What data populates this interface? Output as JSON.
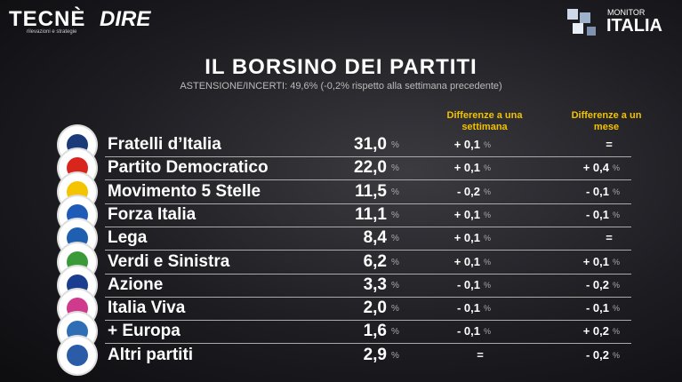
{
  "header": {
    "brand_left": "TECNÈ",
    "brand_left_sub": "rilevazioni e strategie",
    "brand_mid": "DIRE",
    "brand_right_top": "MONITOR",
    "brand_right": "ITALIA"
  },
  "title": "IL BORSINO DEI PARTITI",
  "subtitle": "ASTENSIONE/INCERTI: 49,6% (-0,2% rispetto alla settimana precedente)",
  "table": {
    "columns": [
      "Differenze a una settimana",
      "Differenze a un mese"
    ],
    "unit": "%",
    "rows": [
      [
        "Fratelli d’Italia",
        "31,0",
        "+ 0,1",
        "="
      ],
      [
        "Partito Democratico",
        "22,0",
        "+ 0,1",
        "+ 0,4"
      ],
      [
        "Movimento 5 Stelle",
        "11,5",
        "- 0,2",
        "- 0,1"
      ],
      [
        "Forza Italia",
        "11,1",
        "+ 0,1",
        "- 0,1"
      ],
      [
        "Lega",
        "8,4",
        "+ 0,1",
        "="
      ],
      [
        "Verdi e Sinistra",
        "6,2",
        "+ 0,1",
        "+ 0,1"
      ],
      [
        "Azione",
        "3,3",
        "- 0,1",
        "- 0,2"
      ],
      [
        "Italia Viva",
        "2,0",
        "- 0,1",
        "- 0,1"
      ],
      [
        "+ Europa",
        "1,6",
        "- 0,1",
        "+ 0,2"
      ],
      [
        "Altri partiti",
        "2,9",
        "=",
        "- 0,2"
      ]
    ]
  }
}
